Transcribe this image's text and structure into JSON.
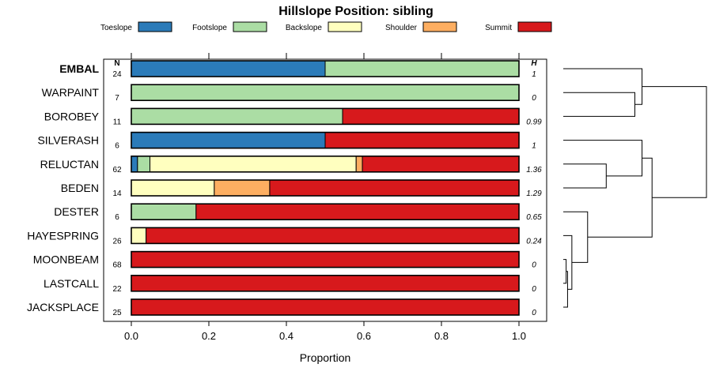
{
  "chart_data": {
    "type": "bar",
    "stacked": true,
    "orientation": "horizontal",
    "title": "Hillslope Position: sibling",
    "xlabel": "Proportion",
    "xlim": [
      0,
      1
    ],
    "xticks": [
      "0.0",
      "0.2",
      "0.4",
      "0.6",
      "0.8",
      "1.0"
    ],
    "n_header": "N",
    "h_header": "H",
    "legend_position": "top",
    "highlight": "EMBAL",
    "series": [
      {
        "name": "Toeslope",
        "color": "#2b7bb9"
      },
      {
        "name": "Footslope",
        "color": "#abdda4"
      },
      {
        "name": "Backslope",
        "color": "#ffffbf"
      },
      {
        "name": "Shoulder",
        "color": "#fdae61"
      },
      {
        "name": "Summit",
        "color": "#d7191c"
      }
    ],
    "rows": [
      {
        "label": "EMBAL",
        "n": "24",
        "h": "1",
        "values": [
          0.5,
          0.5,
          0,
          0,
          0
        ]
      },
      {
        "label": "WARPAINT",
        "n": "7",
        "h": "0",
        "values": [
          0,
          1.0,
          0,
          0,
          0
        ]
      },
      {
        "label": "BOROBEY",
        "n": "11",
        "h": "0.99",
        "values": [
          0,
          0.545,
          0,
          0,
          0.455
        ]
      },
      {
        "label": "SILVERASH",
        "n": "6",
        "h": "1",
        "values": [
          0.5,
          0,
          0,
          0,
          0.5
        ]
      },
      {
        "label": "RELUCTAN",
        "n": "62",
        "h": "1.36",
        "values": [
          0.016,
          0.032,
          0.532,
          0.016,
          0.404
        ]
      },
      {
        "label": "BEDEN",
        "n": "14",
        "h": "1.29",
        "values": [
          0,
          0,
          0.214,
          0.143,
          0.643
        ]
      },
      {
        "label": "DESTER",
        "n": "6",
        "h": "0.65",
        "values": [
          0,
          0.167,
          0,
          0,
          0.833
        ]
      },
      {
        "label": "HAYESPRING",
        "n": "26",
        "h": "0.24",
        "values": [
          0,
          0,
          0.038,
          0,
          0.962
        ]
      },
      {
        "label": "MOONBEAM",
        "n": "68",
        "h": "0",
        "values": [
          0,
          0,
          0,
          0,
          1.0
        ]
      },
      {
        "label": "LASTCALL",
        "n": "22",
        "h": "0",
        "values": [
          0,
          0,
          0,
          0,
          1.0
        ]
      },
      {
        "label": "JACKSPLACE",
        "n": "25",
        "h": "0",
        "values": [
          0,
          0,
          0,
          0,
          1.0
        ]
      }
    ],
    "dendrogram": {
      "type": "hierarchical-clustering",
      "merges": [
        {
          "a": "L:MOONBEAM",
          "b": "L:LASTCALL",
          "height": 0.02
        },
        {
          "a": "M:0",
          "b": "L:JACKSPLACE",
          "height": 0.03
        },
        {
          "a": "L:HAYESPRING",
          "b": "M:1",
          "height": 0.06
        },
        {
          "a": "L:DESTER",
          "b": "M:2",
          "height": 0.17
        },
        {
          "a": "L:RELUCTAN",
          "b": "L:BEDEN",
          "height": 0.3
        },
        {
          "a": "L:WARPAINT",
          "b": "L:BOROBEY",
          "height": 0.5
        },
        {
          "a": "L:SILVERASH",
          "b": "M:4",
          "height": 0.55
        },
        {
          "a": "L:EMBAL",
          "b": "M:5",
          "height": 0.55
        },
        {
          "a": "M:6",
          "b": "M:3",
          "height": 0.62
        },
        {
          "a": "M:7",
          "b": "M:8",
          "height": 1.0
        }
      ]
    }
  }
}
